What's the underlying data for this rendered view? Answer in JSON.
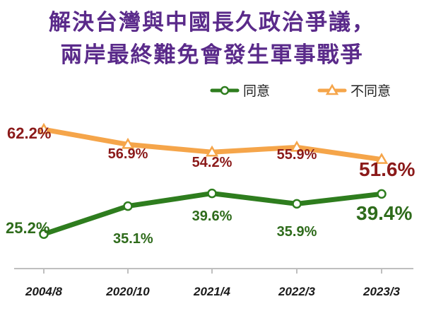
{
  "title_lines": [
    "解決台灣與中國長久政治爭議，",
    "兩岸最終難免會發生軍事戰爭"
  ],
  "colors": {
    "title": "#5a2a8a",
    "agree": "#2e7d1e",
    "disagree": "#f5a54a",
    "agree_label": "#2e6b1b",
    "disagree_label": "#8b1a1a",
    "axis": "#bfbfbf"
  },
  "chart_data": {
    "type": "line",
    "categories": [
      "2004/8",
      "2020/10",
      "2021/4",
      "2022/3",
      "2023/3"
    ],
    "series": [
      {
        "name": "同意",
        "marker": "circle",
        "values": [
          25.2,
          35.1,
          39.6,
          35.9,
          39.4
        ],
        "labels": [
          "25.2%",
          "35.1%",
          "39.6%",
          "35.9%",
          "39.4%"
        ]
      },
      {
        "name": "不同意",
        "marker": "triangle",
        "values": [
          62.2,
          56.9,
          54.2,
          55.9,
          51.6
        ],
        "labels": [
          "62.2%",
          "56.9%",
          "54.2%",
          "55.9%",
          "51.6%"
        ]
      }
    ],
    "ylim": [
      20,
      70
    ],
    "grid": false,
    "legend_position": "top-right"
  }
}
